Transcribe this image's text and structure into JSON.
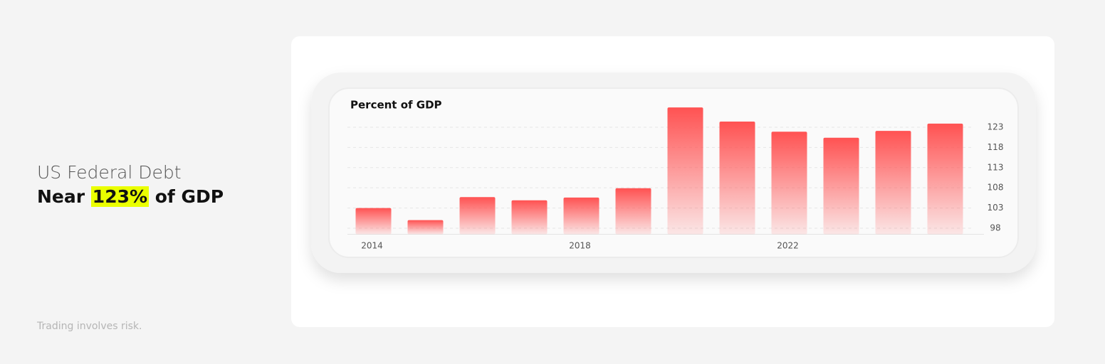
{
  "headline": {
    "line1": "US Federal Debt",
    "before": "Near",
    "highlight": "123%",
    "after": "of GDP"
  },
  "disclaimer": "Trading involves risk.",
  "chart_data": {
    "type": "bar",
    "title": "Percent of GDP",
    "categories": [
      "2014",
      null,
      null,
      null,
      "2018",
      null,
      null,
      null,
      "2022",
      null,
      null,
      null
    ],
    "values": [
      103,
      100,
      105.7,
      104.9,
      105.6,
      107.9,
      127.9,
      124.4,
      121.9,
      120.4,
      122.1,
      123.9
    ],
    "color": "#ff5252",
    "ylim": [
      96.5,
      128
    ],
    "yticks": [
      98,
      103,
      108,
      113,
      118,
      123
    ],
    "grid": true,
    "y_axis_side": "right"
  }
}
